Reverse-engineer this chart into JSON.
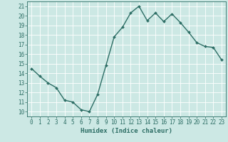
{
  "x": [
    0,
    1,
    2,
    3,
    4,
    5,
    6,
    7,
    8,
    9,
    10,
    11,
    12,
    13,
    14,
    15,
    16,
    17,
    18,
    19,
    20,
    21,
    22,
    23
  ],
  "y": [
    14.5,
    13.7,
    13.0,
    12.5,
    11.2,
    11.0,
    10.2,
    10.0,
    11.8,
    14.8,
    17.8,
    18.8,
    20.3,
    21.0,
    19.5,
    20.3,
    19.4,
    20.2,
    19.3,
    18.3,
    17.2,
    16.8,
    16.7,
    15.4
  ],
  "line_color": "#2d6e65",
  "marker": "D",
  "marker_size": 2.0,
  "bg_color": "#cce8e4",
  "grid_color": "#ffffff",
  "xlabel": "Humidex (Indice chaleur)",
  "xlim": [
    -0.5,
    23.5
  ],
  "ylim": [
    9.5,
    21.5
  ],
  "yticks": [
    10,
    11,
    12,
    13,
    14,
    15,
    16,
    17,
    18,
    19,
    20,
    21
  ],
  "xticks": [
    0,
    1,
    2,
    3,
    4,
    5,
    6,
    7,
    8,
    9,
    10,
    11,
    12,
    13,
    14,
    15,
    16,
    17,
    18,
    19,
    20,
    21,
    22,
    23
  ],
  "tick_label_fontsize": 5.5,
  "xlabel_fontsize": 6.5,
  "line_width": 1.0,
  "axis_color": "#2d6e65"
}
